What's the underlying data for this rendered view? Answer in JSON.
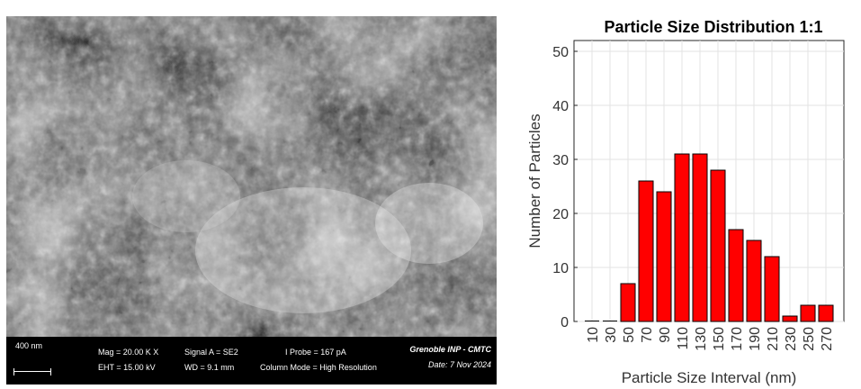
{
  "sem": {
    "scale_label": "400 nm",
    "mag": "Mag =  20.00 K X",
    "eht": "EHT = 15.00 kV",
    "signal": "Signal A = SE2",
    "wd": "WD =  9.1 mm",
    "probe": "I Probe =    167 pA",
    "column_mode": "Column Mode = High Resolution",
    "institution": "Grenoble INP - CMTC",
    "date": "Date: 7 Nov 2024"
  },
  "chart_data": {
    "type": "bar",
    "title": "Particle Size Distribution 1:1",
    "xlabel": "Particle Size Interval (nm)",
    "ylabel": "Number of Particles",
    "categories": [
      "10",
      "30",
      "50",
      "70",
      "90",
      "110",
      "130",
      "150",
      "170",
      "190",
      "210",
      "230",
      "250",
      "270"
    ],
    "values": [
      0,
      0,
      7,
      26,
      24,
      31,
      31,
      28,
      17,
      15,
      12,
      1,
      3,
      3
    ],
    "ylim": [
      0,
      52
    ],
    "yticks": [
      "0",
      "10",
      "20",
      "30",
      "40",
      "50"
    ],
    "grid": true,
    "bar_color": "#ff0000"
  }
}
